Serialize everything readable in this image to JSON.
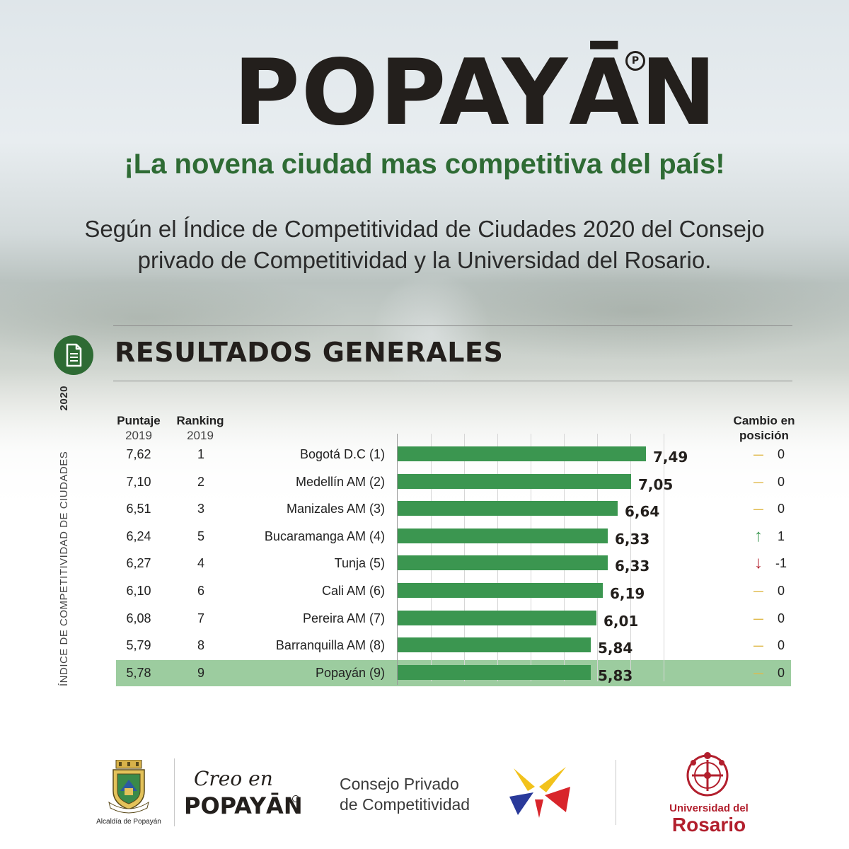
{
  "header": {
    "logo_text": "POPAYĀN",
    "logo_mark": "P",
    "headline": "¡La novena ciudad mas competitiva del país!",
    "subtext_line1": "Según el Índice de Competitividad de Ciudades 2020 del Consejo",
    "subtext_line2": "privado de Competitividad y la Universidad del Rosario."
  },
  "section": {
    "icon": "document-icon",
    "title": "RESULTADOS GENERALES",
    "side_label": "ÍNDICE DE COMPETITIVIDAD DE CIUDADES",
    "side_year": "2020"
  },
  "table": {
    "col_score": {
      "title": "Puntaje",
      "sub": "2019"
    },
    "col_rank": {
      "title": "Ranking",
      "sub": "2019"
    },
    "col_change": {
      "title_line1": "Cambio en",
      "title_line2": "posición"
    }
  },
  "chart_data": {
    "type": "bar",
    "orientation": "horizontal",
    "categories": [
      "Bogotá D.C (1)",
      "Medellín AM (2)",
      "Manizales AM (3)",
      "Bucaramanga AM (4)",
      "Tunja (5)",
      "Cali AM (6)",
      "Pereira AM (7)",
      "Barranquilla AM (8)",
      "Popayán (9)"
    ],
    "values": [
      7.49,
      7.05,
      6.64,
      6.33,
      6.33,
      6.19,
      6.01,
      5.84,
      5.83
    ],
    "value_labels": [
      "7,49",
      "7,05",
      "6,64",
      "6,33",
      "6,33",
      "6,19",
      "6,01",
      "5,84",
      "5,83"
    ],
    "score_2019": [
      "7,62",
      "7,10",
      "6,51",
      "6,24",
      "6,27",
      "6,10",
      "6,08",
      "5,79",
      "5,78"
    ],
    "ranking_2019": [
      "1",
      "2",
      "3",
      "5",
      "4",
      "6",
      "7",
      "8",
      "9"
    ],
    "position_change": [
      "0",
      "0",
      "0",
      "1",
      "-1",
      "0",
      "0",
      "0",
      "0"
    ],
    "position_change_icon": [
      "dash-icon",
      "dash-icon",
      "dash-icon",
      "arrow-up-icon",
      "arrow-down-icon",
      "dash-icon",
      "dash-icon",
      "dash-icon",
      "dash-icon"
    ],
    "highlight_index": 8,
    "xlim": [
      0,
      8
    ],
    "grid": true,
    "colors": {
      "bar": "#3b9650",
      "highlight_row": "#9ccc9f",
      "up": "#3b9650",
      "down": "#b21f2d",
      "neutral": "#e0b94a"
    }
  },
  "footer": {
    "alcaldia": "Alcaldía de Popayán",
    "creo_script": "Creo en",
    "creo_logo": "POPAYĀN",
    "cpc_line1": "Consejo Privado",
    "cpc_line2": "de Competitividad",
    "ur_line1": "Universidad del",
    "ur_line2": "Rosario"
  }
}
